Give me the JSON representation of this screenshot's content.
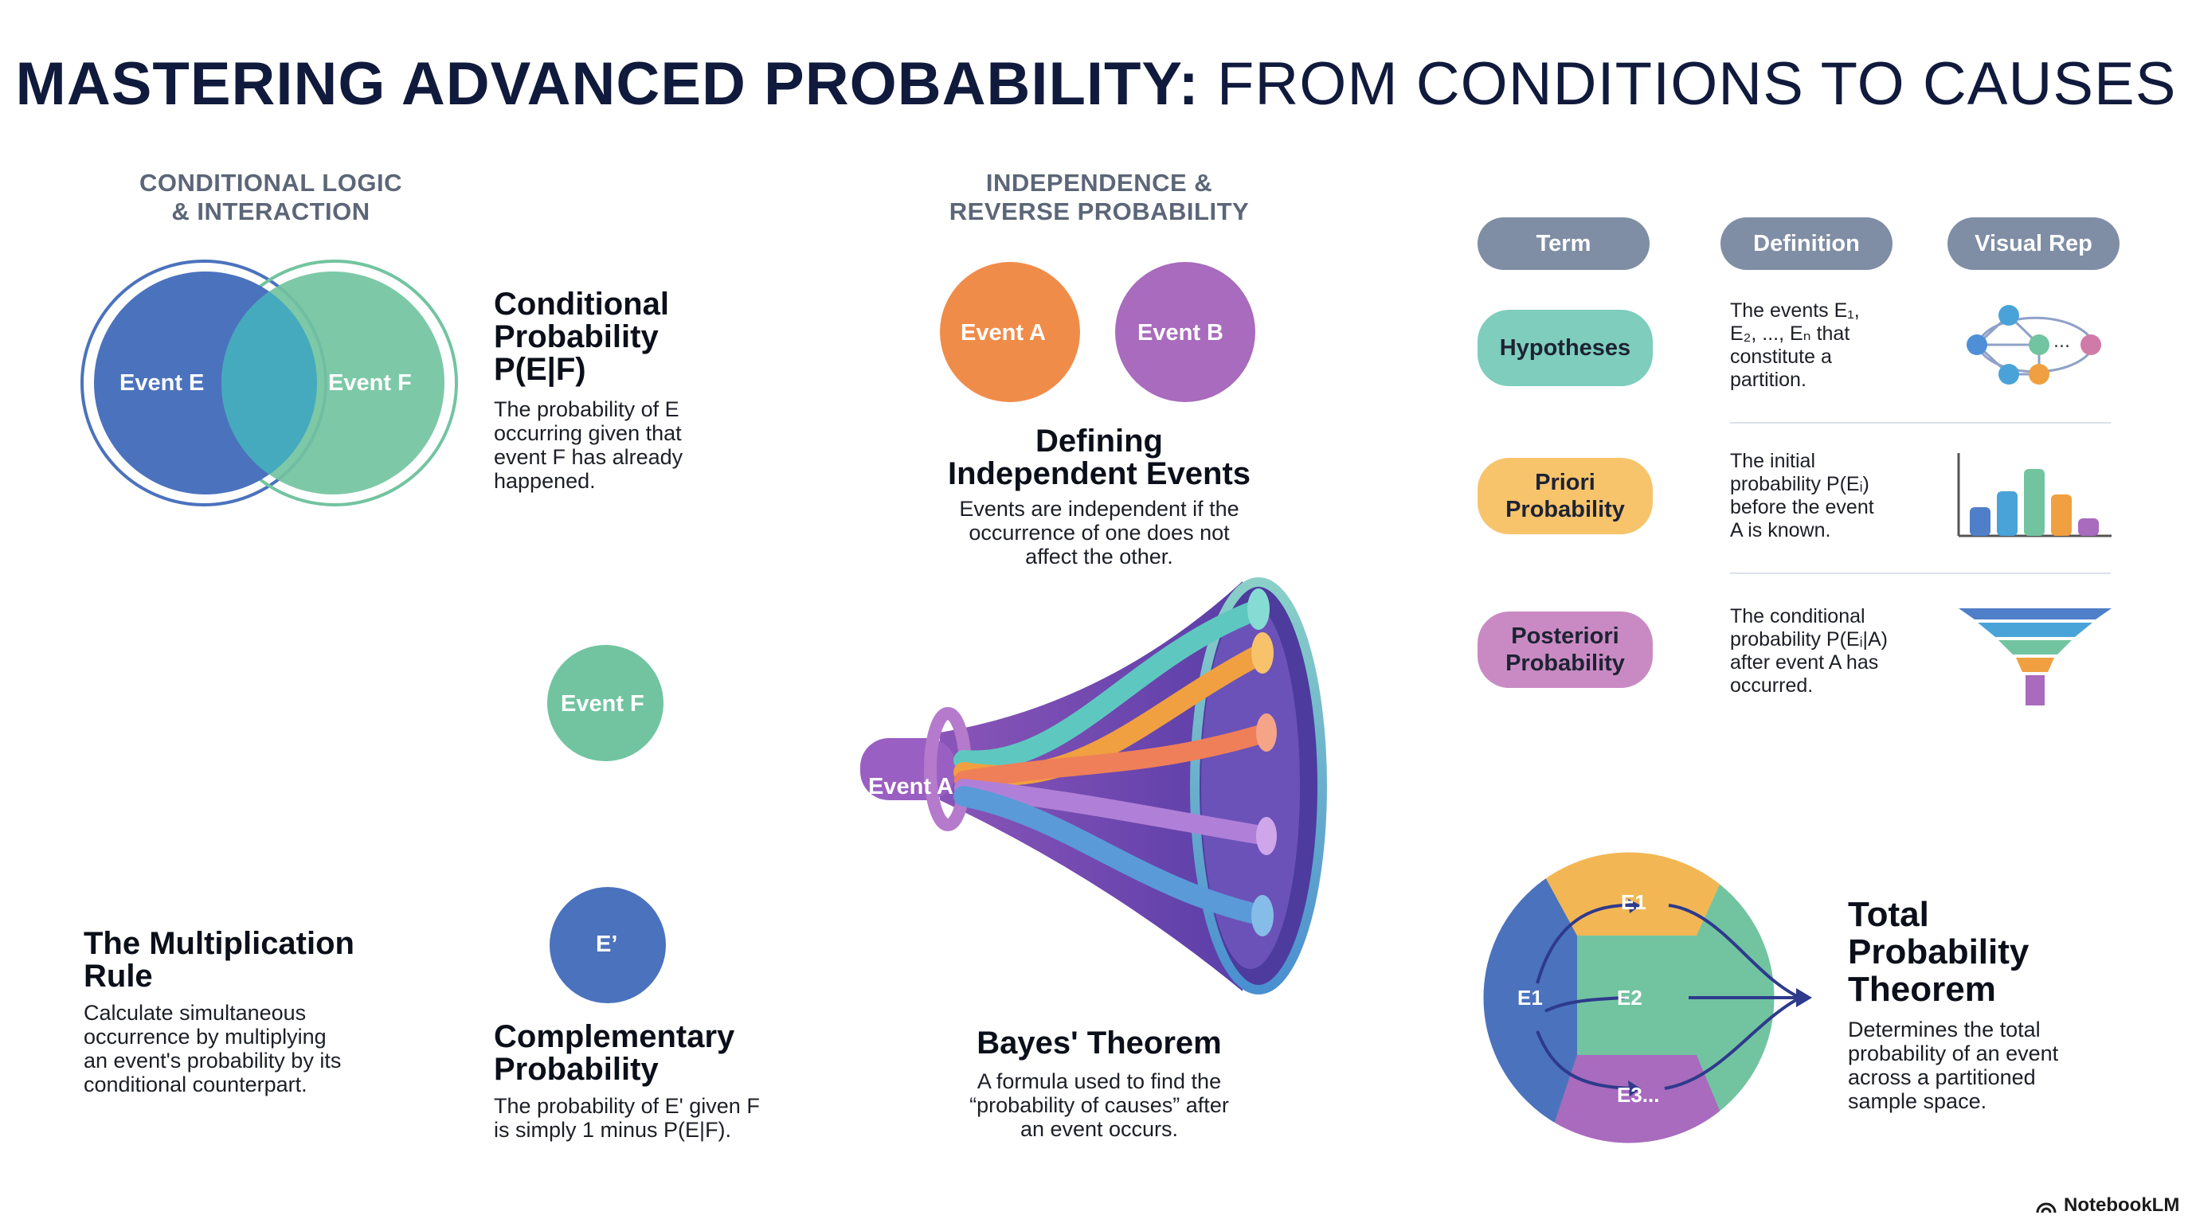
{
  "title": {
    "bold": "MASTERING ADVANCED PROBABILITY:",
    "light": "FROM CONDITIONS TO CAUSES"
  },
  "sections": {
    "conditional_logic": {
      "line1": "CONDITIONAL LOGIC",
      "line2": "& INTERACTION"
    },
    "independence": {
      "line1": "INDEPENDENCE &",
      "line2": "REVERSE PROBABILITY"
    }
  },
  "venn": {
    "left_label": "Event E",
    "right_label": "Event F"
  },
  "conditional_probability": {
    "heading_lines": [
      "Conditional",
      "Probability",
      "P(E|F)"
    ],
    "desc_lines": [
      "The probability of E",
      "occurring given that",
      "event F has already",
      "happened."
    ]
  },
  "independent_events": {
    "event_a": "Event A",
    "event_b": "Event B",
    "heading_lines": [
      "Defining",
      "Independent Events"
    ],
    "desc_lines": [
      "Events are independent if the",
      "occurrence of one does not",
      "affect the other."
    ]
  },
  "event_f_circle": "Event F",
  "e_prime_circle": "E’",
  "multiplication_rule": {
    "heading_lines": [
      "The Multiplication",
      "Rule"
    ],
    "desc_lines": [
      "Calculate simultaneous",
      "occurrence by multiplying",
      "an event's probability by its",
      "conditional counterpart."
    ]
  },
  "complementary": {
    "heading_lines": [
      "Complementary",
      "Probability"
    ],
    "desc_lines": [
      "The probability of E' given F",
      "is simply 1 minus P(E|F)."
    ]
  },
  "bayes": {
    "funnel_label": "Event A",
    "heading": "Bayes' Theorem",
    "desc_lines": [
      "A formula used to find the",
      "“probability of causes” after",
      "an event occurs."
    ]
  },
  "table": {
    "headers": [
      "Term",
      "Definition",
      "Visual Rep"
    ],
    "rows": [
      {
        "term_lines": [
          "Hypotheses"
        ],
        "def_lines": [
          "The events E₁,",
          "E₂, ..., Eₙ that",
          "constitute a",
          "partition."
        ],
        "color": "#7ecdbd"
      },
      {
        "term_lines": [
          "Priori",
          "Probability"
        ],
        "def_lines": [
          "The initial",
          "probability P(Eᵢ)",
          "before the event",
          "A is known."
        ],
        "color": "#f7c46c"
      },
      {
        "term_lines": [
          "Posteriori",
          "Probability"
        ],
        "def_lines": [
          "The conditional",
          "probability P(Eᵢ|A)",
          "after event A has",
          "occurred."
        ],
        "color": "#c98ac3"
      }
    ]
  },
  "network_icon": {
    "ellipsis": "..."
  },
  "total_probability": {
    "segments": [
      "E1",
      "E1",
      "E2",
      "E3..."
    ],
    "heading_lines": [
      "Total",
      "Probability",
      "Theorem"
    ],
    "desc_lines": [
      "Determines the total",
      "probability of an event",
      "across a partitioned",
      "sample space."
    ]
  },
  "footer": {
    "brand": "NotebookLM"
  },
  "colors": {
    "blue": "#4b72bd",
    "green": "#72c4a0",
    "orange": "#f08c4a",
    "purple": "#a86bbd",
    "yellow": "#f2b754",
    "navy": "#101a3c"
  }
}
